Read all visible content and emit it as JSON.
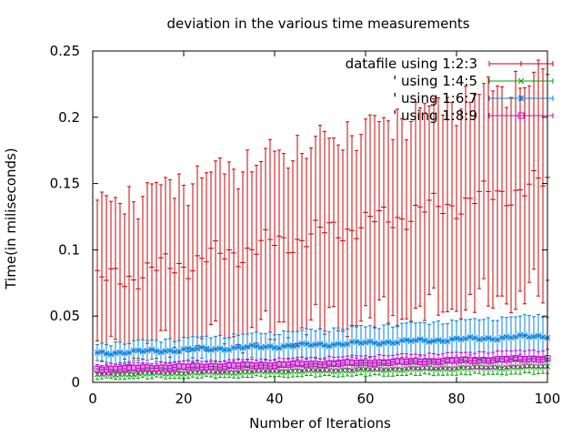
{
  "chart_data": {
    "type": "line",
    "title": "deviation in the various time measurements",
    "xlabel": "Number of Iterations",
    "ylabel": "Time(in miliseconds)",
    "xlim": [
      0,
      100
    ],
    "ylim": [
      0,
      0.25
    ],
    "xticks": [
      0,
      20,
      40,
      60,
      80,
      100
    ],
    "xtick_labels": [
      "0",
      "20",
      "40",
      "60",
      "80",
      "100"
    ],
    "yticks": [
      0,
      0.05,
      0.1,
      0.15,
      0.2,
      0.25
    ],
    "ytick_labels": [
      "0",
      "0.05",
      "0.1",
      "0.15",
      "0.2",
      "0.25"
    ],
    "grid": false,
    "legend_position": "top-right",
    "style": "errorbars",
    "series": [
      {
        "name": "datafile using 1:2:3",
        "color": "#cc0000",
        "marker": "plus",
        "start": [
          1,
          0.075
        ],
        "end": [
          100,
          0.15
        ],
        "err_start": 0.05,
        "err_end": 0.075
      },
      {
        "name": "' using 1:4:5",
        "color": "#00a000",
        "marker": "cross",
        "start": [
          1,
          0.006
        ],
        "end": [
          100,
          0.012
        ],
        "err_start": 0.003,
        "err_end": 0.005
      },
      {
        "name": "' using 1:6:7",
        "color": "#0080e0",
        "marker": "star",
        "start": [
          1,
          0.022
        ],
        "end": [
          100,
          0.035
        ],
        "err_start": 0.006,
        "err_end": 0.015
      },
      {
        "name": "' using 1:8:9",
        "color": "#cc00cc",
        "marker": "square",
        "start": [
          1,
          0.01
        ],
        "end": [
          100,
          0.018
        ],
        "err_start": 0.003,
        "err_end": 0.006
      }
    ]
  }
}
